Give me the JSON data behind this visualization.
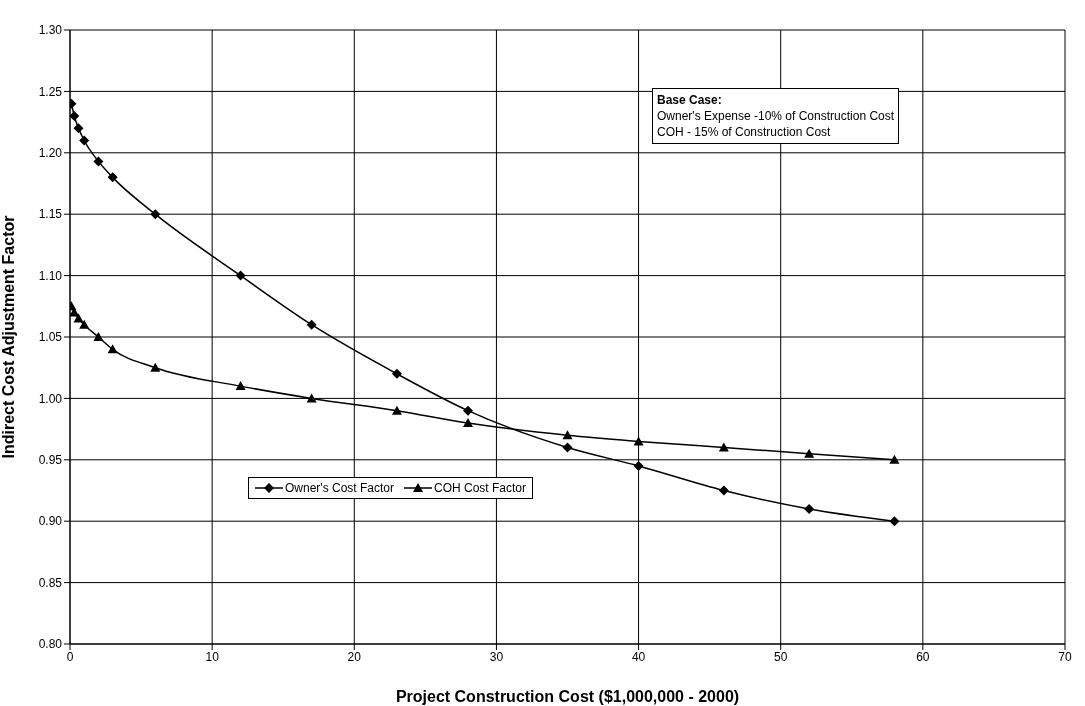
{
  "chart_data": {
    "type": "line",
    "xlabel": "Project Construction Cost ($1,000,000 - 2000)",
    "ylabel": "Indirect Cost Adjustment Factor",
    "x": [
      0.1,
      0.3,
      0.6,
      1,
      2,
      3,
      6,
      12,
      17,
      23,
      28,
      35,
      40,
      46,
      52,
      58
    ],
    "series": [
      {
        "name": "Owner's Cost Factor",
        "color": "#000000",
        "marker": "diamond",
        "values": [
          1.24,
          1.23,
          1.22,
          1.21,
          1.193,
          1.18,
          1.15,
          1.1,
          1.06,
          1.02,
          0.99,
          0.96,
          0.945,
          0.925,
          0.91,
          0.9
        ]
      },
      {
        "name": "COH Cost Factor",
        "color": "#000000",
        "marker": "triangle",
        "values": [
          1.075,
          1.07,
          1.065,
          1.06,
          1.05,
          1.04,
          1.025,
          1.01,
          1.0,
          0.99,
          0.98,
          0.97,
          0.965,
          0.96,
          0.955,
          0.95
        ]
      }
    ],
    "xlim": [
      0,
      70
    ],
    "xticks": [
      0,
      10,
      20,
      30,
      40,
      50,
      60,
      70
    ],
    "ylim": [
      0.8,
      1.3
    ],
    "yticks": [
      {
        "value": 0.8,
        "label": "0.80"
      },
      {
        "value": 0.85,
        "label": "0.85"
      },
      {
        "value": 0.9,
        "label": "0.90"
      },
      {
        "value": 0.95,
        "label": "0.95"
      },
      {
        "value": 1.0,
        "label": "1.00"
      },
      {
        "value": 1.05,
        "label": "1.05"
      },
      {
        "value": 1.1,
        "label": "1.10"
      },
      {
        "value": 1.15,
        "label": "1.15"
      },
      {
        "value": 1.2,
        "label": "1.20"
      },
      {
        "value": 1.25,
        "label": "1.25"
      },
      {
        "value": 1.3,
        "label": "1.30"
      }
    ],
    "grid": true,
    "legend": "left",
    "line_style": "solid",
    "annotations": [
      "Base Case:",
      "Owner's Expense -10% of Construction Cost",
      "COH - 15% of Construction Cost"
    ]
  }
}
